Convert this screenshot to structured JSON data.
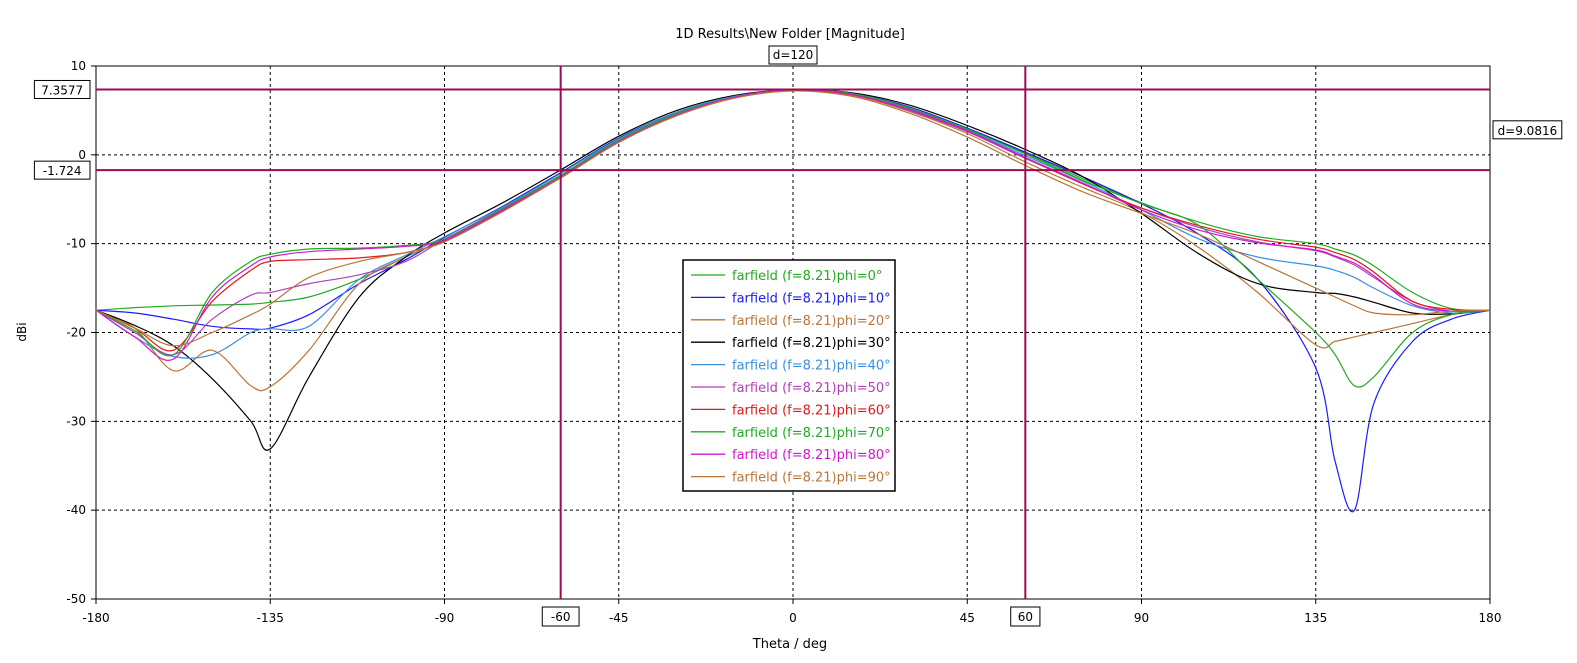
{
  "chart_data": {
    "type": "line",
    "title": "1D Results\\New Folder [Magnitude]",
    "xlabel": "Theta / deg",
    "ylabel": "dBi",
    "xlim": [
      -180,
      180
    ],
    "ylim": [
      -50,
      10
    ],
    "x_ticks": [
      -180,
      -135,
      -90,
      -45,
      0,
      45,
      90,
      135,
      180
    ],
    "y_ticks": [
      10,
      0,
      -10,
      -20,
      -30,
      -40,
      -50
    ],
    "grid": true,
    "legend_position": "center",
    "markers": {
      "h_lines": [
        7.3577,
        -1.724
      ],
      "h_labels": [
        "7.3577",
        "-1.724"
      ],
      "h_diff_label": "d=9.0816",
      "v_lines": [
        -60,
        60
      ],
      "v_labels": [
        "-60",
        "60"
      ],
      "v_diff_label": "d=120",
      "color": "#9b0a52"
    },
    "x": [
      -180,
      -170,
      -160,
      -150,
      -140,
      -135,
      -125,
      -112,
      -100,
      -90,
      -75,
      -60,
      -45,
      -30,
      -15,
      0,
      15,
      30,
      45,
      60,
      75,
      90,
      105,
      120,
      135,
      140,
      145,
      150,
      160,
      170,
      180
    ],
    "series": [
      {
        "name": "farfield (f=8.21)phi=0°",
        "color": "#22aa22",
        "values": [
          -17.5,
          -17.2,
          -17.0,
          -16.9,
          -16.8,
          -16.6,
          -16.0,
          -14.0,
          -11.5,
          -9.5,
          -6.0,
          -2.3,
          1.7,
          4.7,
          6.6,
          7.3,
          6.9,
          5.3,
          2.9,
          0.2,
          -2.7,
          -5.4,
          -7.6,
          -9.2,
          -10.0,
          -10.6,
          -11.3,
          -12.5,
          -15.5,
          -17.3,
          -17.5
        ]
      },
      {
        "name": "farfield (f=8.21)phi=10°",
        "color": "#1a1aff",
        "values": [
          -17.5,
          -17.8,
          -18.5,
          -19.3,
          -19.6,
          -19.5,
          -18.0,
          -14.5,
          -11.8,
          -9.3,
          -5.8,
          -2.0,
          1.9,
          4.8,
          6.6,
          7.3,
          6.9,
          5.4,
          3.0,
          0.3,
          -2.5,
          -5.5,
          -9.0,
          -14.0,
          -24.0,
          -34.5,
          -40.0,
          -28.0,
          -21.0,
          -18.5,
          -17.5
        ]
      },
      {
        "name": "farfield (f=8.21)phi=20°",
        "color": "#b8763a",
        "values": [
          -17.5,
          -19.5,
          -24.3,
          -22.0,
          -26.0,
          -26.1,
          -22.0,
          -14.5,
          -11.5,
          -9.6,
          -6.2,
          -2.6,
          1.4,
          4.4,
          6.4,
          7.2,
          6.7,
          4.9,
          2.4,
          -0.8,
          -3.7,
          -6.5,
          -10.5,
          -15.5,
          -21.4,
          -21.0,
          -20.5,
          -20.0,
          -19.0,
          -18.0,
          -17.5
        ]
      },
      {
        "name": "farfield (f=8.21)phi=30°",
        "color": "#000000",
        "values": [
          -17.5,
          -19.2,
          -21.5,
          -25.2,
          -30.0,
          -33.1,
          -25.0,
          -16.0,
          -11.5,
          -8.8,
          -5.4,
          -1.7,
          2.1,
          5.0,
          6.7,
          7.3,
          7.0,
          5.6,
          3.3,
          0.6,
          -2.5,
          -6.6,
          -11.2,
          -14.5,
          -15.5,
          -15.6,
          -16.0,
          -16.6,
          -17.8,
          -17.9,
          -17.5
        ]
      },
      {
        "name": "farfield (f=8.21)phi=40°",
        "color": "#3a8fe0",
        "values": [
          -17.5,
          -20.5,
          -22.7,
          -22.5,
          -20.0,
          -19.6,
          -19.3,
          -14.0,
          -11.3,
          -9.2,
          -5.9,
          -2.1,
          1.8,
          4.8,
          6.6,
          7.3,
          6.9,
          5.2,
          2.8,
          -0.1,
          -3.0,
          -6.2,
          -9.5,
          -11.5,
          -12.5,
          -13.0,
          -13.8,
          -15.0,
          -17.0,
          -17.8,
          -17.5
        ]
      },
      {
        "name": "farfield (f=8.21)phi=50°",
        "color": "#b040b8",
        "values": [
          -17.5,
          -20.0,
          -22.5,
          -18.5,
          -15.8,
          -15.5,
          -14.5,
          -13.5,
          -12.0,
          -9.5,
          -6.1,
          -2.4,
          1.6,
          4.6,
          6.5,
          7.3,
          6.8,
          5.0,
          2.6,
          -0.4,
          -3.3,
          -6.0,
          -8.2,
          -9.8,
          -10.8,
          -11.5,
          -12.4,
          -13.8,
          -16.5,
          -17.6,
          -17.5
        ]
      },
      {
        "name": "farfield (f=8.21)phi=60°",
        "color": "#e01818",
        "values": [
          -17.5,
          -19.5,
          -22.0,
          -16.5,
          -13.0,
          -12.0,
          -11.8,
          -11.6,
          -11.0,
          -9.7,
          -6.3,
          -2.5,
          1.5,
          4.5,
          6.5,
          7.3,
          6.8,
          5.1,
          2.7,
          -0.3,
          -3.3,
          -6.0,
          -8.0,
          -9.5,
          -10.4,
          -11.0,
          -11.8,
          -13.2,
          -16.5,
          -17.4,
          -17.5
        ]
      },
      {
        "name": "farfield (f=8.21)phi=70°",
        "color": "#22aa22",
        "values": [
          -17.5,
          -19.8,
          -22.5,
          -15.5,
          -12.0,
          -11.2,
          -10.6,
          -10.5,
          -10.2,
          -9.5,
          -6.1,
          -2.4,
          1.6,
          4.6,
          6.5,
          7.3,
          6.9,
          5.3,
          2.9,
          0.1,
          -2.9,
          -5.5,
          -8.0,
          -14.0,
          -20.0,
          -22.5,
          -26.0,
          -25.0,
          -20.0,
          -18.0,
          -17.5
        ]
      },
      {
        "name": "farfield (f=8.21)phi=80°",
        "color": "#d018d0",
        "values": [
          -17.5,
          -20.5,
          -23.0,
          -16.0,
          -12.5,
          -11.5,
          -10.9,
          -10.6,
          -10.3,
          -9.6,
          -6.2,
          -2.5,
          1.5,
          4.5,
          6.5,
          7.3,
          6.8,
          5.1,
          2.7,
          -0.3,
          -3.2,
          -6.2,
          -8.5,
          -9.9,
          -10.7,
          -11.4,
          -12.2,
          -13.6,
          -16.8,
          -17.6,
          -17.5
        ]
      },
      {
        "name": "farfield (f=8.21)phi=90°",
        "color": "#b8763a",
        "values": [
          -17.5,
          -19.5,
          -21.5,
          -20.0,
          -18.0,
          -16.8,
          -13.8,
          -12.0,
          -11.0,
          -9.8,
          -6.4,
          -2.6,
          1.4,
          4.4,
          6.4,
          7.2,
          6.6,
          4.7,
          2.0,
          -1.2,
          -4.2,
          -6.6,
          -9.0,
          -12.0,
          -15.0,
          -16.0,
          -17.0,
          -17.8,
          -18.0,
          -17.6,
          -17.5
        ]
      }
    ]
  }
}
